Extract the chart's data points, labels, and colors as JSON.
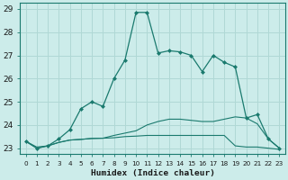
{
  "xlabel": "Humidex (Indice chaleur)",
  "x": [
    0,
    1,
    2,
    3,
    4,
    5,
    6,
    7,
    8,
    9,
    10,
    11,
    12,
    13,
    14,
    15,
    16,
    17,
    18,
    19,
    20,
    21,
    22,
    23
  ],
  "line1": [
    23.3,
    23.0,
    23.1,
    23.4,
    23.8,
    24.7,
    25.0,
    24.8,
    26.0,
    26.8,
    28.85,
    28.85,
    27.1,
    27.2,
    27.15,
    27.0,
    26.3,
    27.0,
    26.7,
    26.5,
    24.3,
    24.45,
    23.4,
    23.0
  ],
  "line2": [
    23.3,
    23.0,
    23.1,
    23.25,
    23.35,
    23.38,
    23.42,
    23.43,
    23.45,
    23.5,
    23.52,
    23.55,
    23.55,
    23.55,
    23.55,
    23.55,
    23.55,
    23.55,
    23.55,
    23.1,
    23.05,
    23.05,
    23.0,
    22.95
  ],
  "line3": [
    23.3,
    23.05,
    23.1,
    23.25,
    23.35,
    23.38,
    23.42,
    23.43,
    23.55,
    23.65,
    23.75,
    24.0,
    24.15,
    24.25,
    24.25,
    24.2,
    24.15,
    24.15,
    24.25,
    24.35,
    24.3,
    24.05,
    23.4,
    23.0
  ],
  "line_color": "#1a7a6e",
  "bg_color": "#ccecea",
  "grid_color": "#b0d8d5",
  "ylim": [
    22.75,
    29.25
  ],
  "yticks": [
    23,
    24,
    25,
    26,
    27,
    28,
    29
  ],
  "xlim": [
    -0.5,
    23.5
  ]
}
